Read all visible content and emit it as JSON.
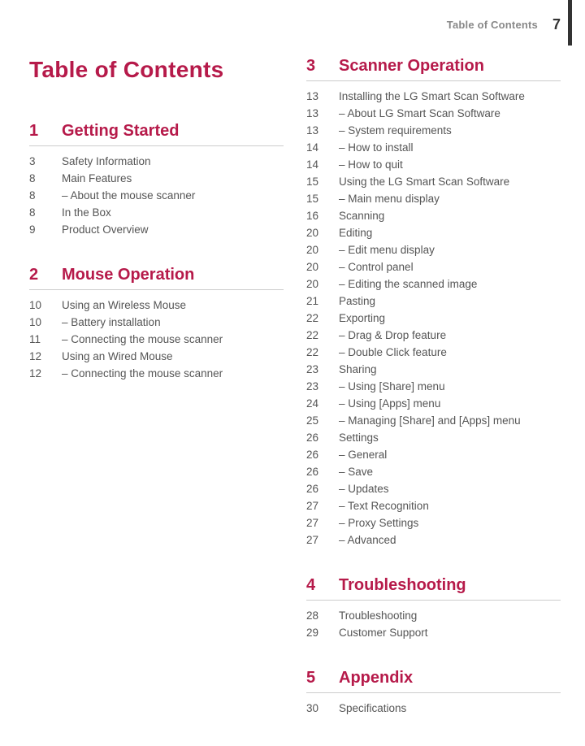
{
  "header": {
    "running_title": "Table of Contents",
    "page_number": "7"
  },
  "title": "Table of Contents",
  "colors": {
    "accent": "#b61a4a",
    "text": "#555555",
    "muted": "#888888",
    "rule": "#cccccc",
    "bar": "#333333",
    "bg": "#ffffff"
  },
  "sections": [
    {
      "num": "1",
      "title": "Getting Started",
      "items": [
        {
          "page": "3",
          "text": "Safety Information",
          "sub": false
        },
        {
          "page": "8",
          "text": "Main Features",
          "sub": false
        },
        {
          "page": "8",
          "text": "About the mouse scanner",
          "sub": true
        },
        {
          "page": "8",
          "text": "In the Box",
          "sub": false
        },
        {
          "page": "9",
          "text": "Product Overview",
          "sub": false
        }
      ]
    },
    {
      "num": "2",
      "title": "Mouse Operation",
      "items": [
        {
          "page": "10",
          "text": "Using an Wireless Mouse",
          "sub": false
        },
        {
          "page": "10",
          "text": "Battery installation",
          "sub": true
        },
        {
          "page": "11",
          "text": "Connecting the mouse scanner",
          "sub": true
        },
        {
          "page": "12",
          "text": "Using an Wired Mouse",
          "sub": false
        },
        {
          "page": "12",
          "text": "Connecting the mouse scanner",
          "sub": true
        }
      ]
    },
    {
      "num": "3",
      "title": "Scanner Operation",
      "items": [
        {
          "page": "13",
          "text": "Installing the LG Smart Scan Software",
          "sub": false
        },
        {
          "page": "13",
          "text": "About LG Smart Scan Software",
          "sub": true
        },
        {
          "page": "13",
          "text": "System requirements",
          "sub": true
        },
        {
          "page": "14",
          "text": "How to install",
          "sub": true
        },
        {
          "page": "14",
          "text": "How to quit",
          "sub": true
        },
        {
          "page": "15",
          "text": "Using the LG Smart Scan Software",
          "sub": false
        },
        {
          "page": "15",
          "text": "Main menu display",
          "sub": true
        },
        {
          "page": "16",
          "text": "Scanning",
          "sub": false
        },
        {
          "page": "20",
          "text": "Editing",
          "sub": false
        },
        {
          "page": "20",
          "text": "Edit menu display",
          "sub": true
        },
        {
          "page": "20",
          "text": "Control panel",
          "sub": true
        },
        {
          "page": "20",
          "text": "Editing the scanned image",
          "sub": true
        },
        {
          "page": "21",
          "text": "Pasting",
          "sub": false
        },
        {
          "page": "22",
          "text": "Exporting",
          "sub": false
        },
        {
          "page": "22",
          "text": "Drag & Drop feature",
          "sub": true
        },
        {
          "page": "22",
          "text": "Double Click feature",
          "sub": true
        },
        {
          "page": "23",
          "text": "Sharing",
          "sub": false
        },
        {
          "page": "23",
          "text": "Using [Share] menu",
          "sub": true
        },
        {
          "page": "24",
          "text": "Using [Apps] menu",
          "sub": true
        },
        {
          "page": "25",
          "text": "Managing [Share] and [Apps] menu",
          "sub": true
        },
        {
          "page": "26",
          "text": "Settings",
          "sub": false
        },
        {
          "page": "26",
          "text": "General",
          "sub": true
        },
        {
          "page": "26",
          "text": "Save",
          "sub": true
        },
        {
          "page": "26",
          "text": "Updates",
          "sub": true
        },
        {
          "page": "27",
          "text": "Text Recognition",
          "sub": true
        },
        {
          "page": "27",
          "text": "Proxy Settings",
          "sub": true
        },
        {
          "page": "27",
          "text": "Advanced",
          "sub": true
        }
      ]
    },
    {
      "num": "4",
      "title": "Troubleshooting",
      "items": [
        {
          "page": "28",
          "text": "Troubleshooting",
          "sub": false
        },
        {
          "page": "29",
          "text": "Customer Support",
          "sub": false
        }
      ]
    },
    {
      "num": "5",
      "title": "Appendix",
      "items": [
        {
          "page": "30",
          "text": "Specifications",
          "sub": false
        }
      ]
    }
  ]
}
